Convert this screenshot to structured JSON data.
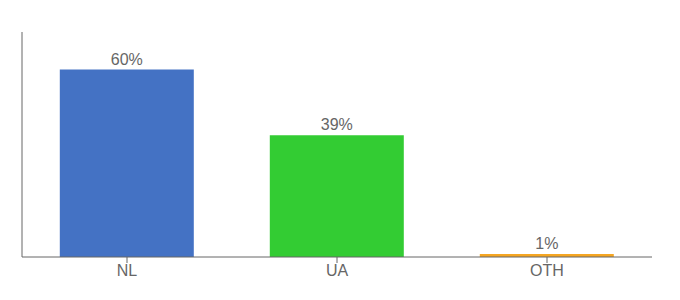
{
  "chart_data": {
    "type": "bar",
    "categories": [
      "NL",
      "UA",
      "OTH"
    ],
    "values": [
      60,
      39,
      1
    ],
    "value_labels": [
      "60%",
      "39%",
      "1%"
    ],
    "colors": [
      "#4472c4",
      "#33cc33",
      "#f5a623"
    ],
    "ylim": [
      0,
      72
    ],
    "data_labels": true,
    "tick_labels": "x",
    "grid": false
  }
}
